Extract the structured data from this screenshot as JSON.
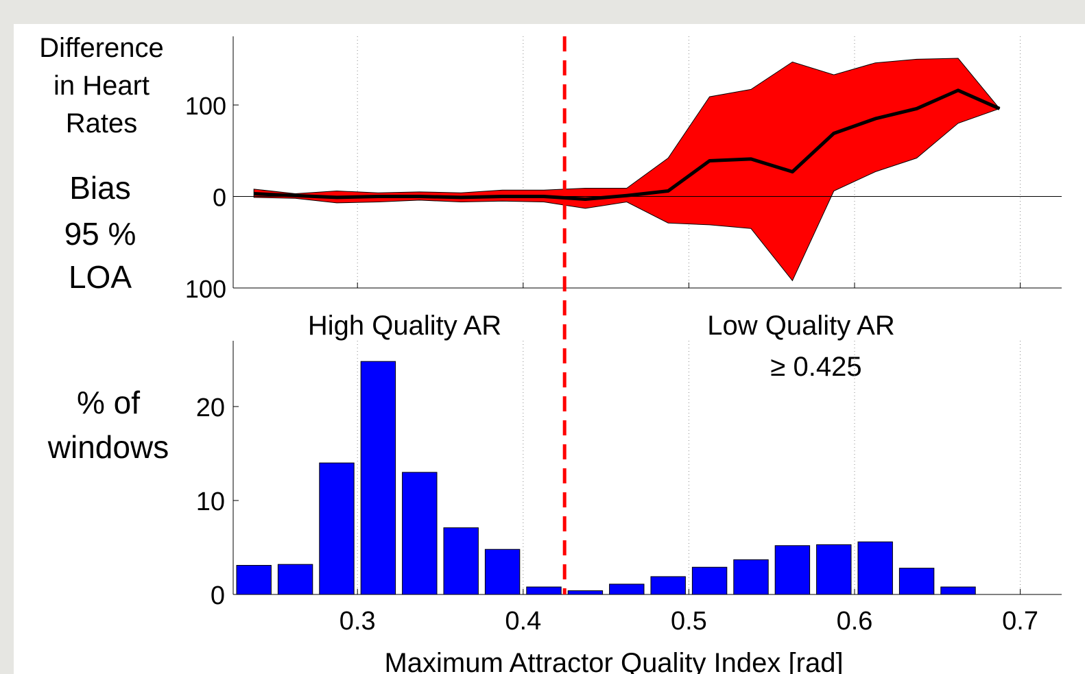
{
  "chart_data": [
    {
      "type": "area",
      "ylabel_lines": [
        "Difference",
        "in Heart",
        "Rates"
      ],
      "legend": [
        {
          "label": "Bias",
          "color": "#000000"
        },
        {
          "label_lines": [
            "95 %",
            "LOA"
          ],
          "color": "#ff0000"
        }
      ],
      "ytick_labels": [
        "100",
        "0",
        "100"
      ],
      "ytick_values": [
        100,
        0,
        -100
      ],
      "ylim": [
        -100,
        175
      ],
      "xlim": [
        0.225,
        0.725
      ],
      "grid": "vertical dotted",
      "x": [
        0.2375,
        0.2625,
        0.2875,
        0.3125,
        0.3375,
        0.3625,
        0.3875,
        0.4125,
        0.4375,
        0.4625,
        0.4875,
        0.5125,
        0.5375,
        0.5625,
        0.5875,
        0.6125,
        0.6375,
        0.6625,
        0.6875
      ],
      "series": [
        {
          "name": "Bias",
          "values": [
            3,
            1,
            -1,
            0,
            0,
            -1,
            0,
            0,
            -3,
            1,
            6,
            39,
            41,
            27,
            69,
            85,
            96,
            116,
            96
          ]
        },
        {
          "name": "95 % LOA",
          "upper": [
            8,
            3,
            6,
            4,
            5,
            4,
            7,
            7,
            9,
            9,
            42,
            109,
            117,
            147,
            133,
            146,
            150,
            151,
            96
          ],
          "lower": [
            -1,
            -2,
            -7,
            -6,
            -4,
            -6,
            -5,
            -6,
            -13,
            -6,
            -29,
            -31,
            -35,
            -92,
            6,
            27,
            42,
            80,
            96
          ]
        }
      ],
      "reference_line": {
        "x": 0.425,
        "color": "#ff0000",
        "style": "dashed"
      },
      "region_labels": [
        {
          "lines": [
            "High Quality AR"
          ]
        },
        {
          "lines": [
            "Low Quality AR",
            "≥ 0.425"
          ]
        }
      ]
    },
    {
      "type": "bar",
      "ylabel_lines": [
        "% of",
        "windows"
      ],
      "xlabel": "Maximum Attractor Quality Index [rad]",
      "ytick_labels": [
        "0",
        "10",
        "20"
      ],
      "ytick_values": [
        0,
        10,
        20
      ],
      "ylim": [
        0,
        27
      ],
      "xlim": [
        0.225,
        0.725
      ],
      "xtick_labels": [
        "0.3",
        "0.4",
        "0.5",
        "0.6",
        "0.7"
      ],
      "xtick_values": [
        0.3,
        0.4,
        0.5,
        0.6,
        0.7
      ],
      "grid": "vertical dotted",
      "bar_color": "#0000ff",
      "x": [
        0.2375,
        0.2625,
        0.2875,
        0.3125,
        0.3375,
        0.3625,
        0.3875,
        0.4125,
        0.4375,
        0.4625,
        0.4875,
        0.5125,
        0.5375,
        0.5625,
        0.5875,
        0.6125,
        0.6375,
        0.6625
      ],
      "values": [
        3.1,
        3.2,
        14.0,
        24.8,
        13.0,
        7.1,
        4.8,
        0.8,
        0.4,
        1.1,
        1.9,
        2.9,
        3.7,
        5.2,
        5.3,
        5.6,
        2.8,
        0.8
      ],
      "reference_line": {
        "x": 0.425,
        "color": "#ff0000",
        "style": "dashed"
      }
    }
  ]
}
